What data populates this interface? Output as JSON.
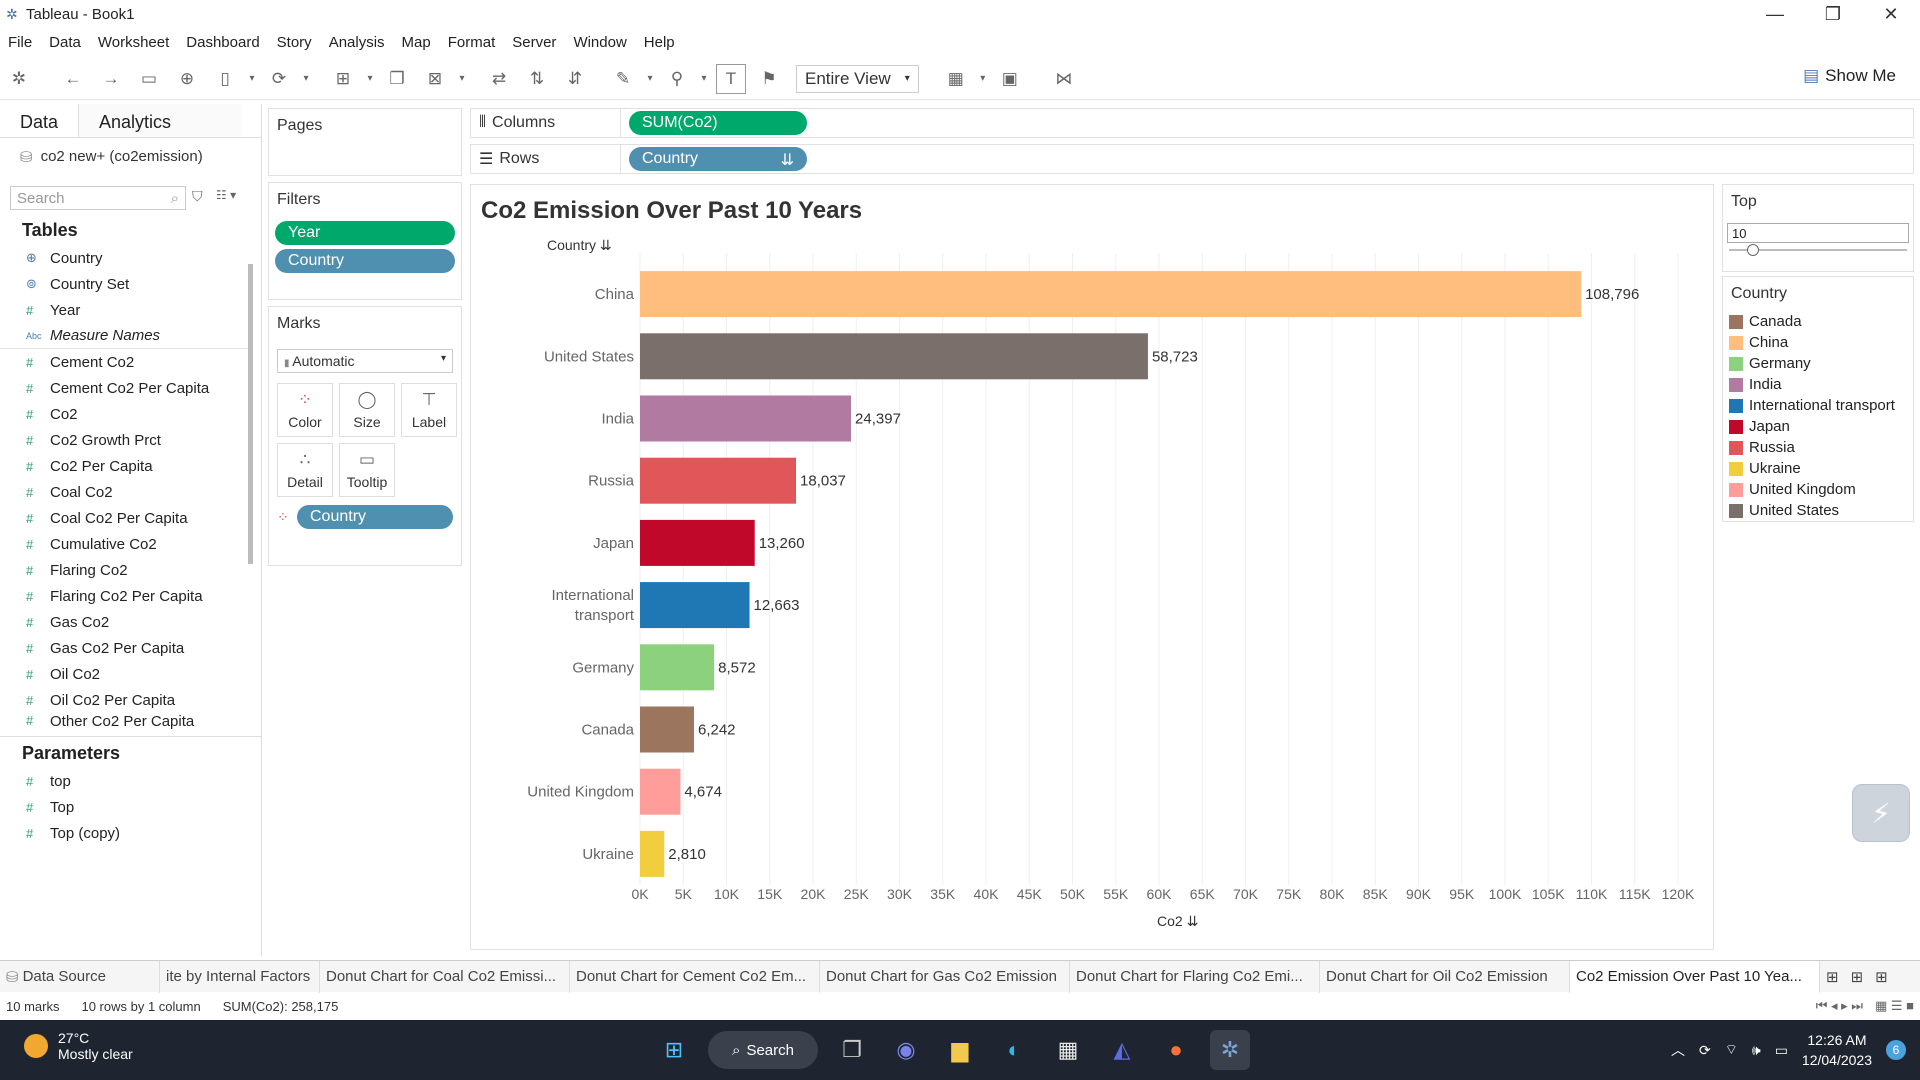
{
  "window": {
    "title": "Tableau - Book1"
  },
  "menu": [
    "File",
    "Data",
    "Worksheet",
    "Dashboard",
    "Story",
    "Analysis",
    "Map",
    "Format",
    "Server",
    "Window",
    "Help"
  ],
  "toolbar": {
    "view_fit": "Entire View",
    "show_me": "Show Me"
  },
  "data_pane": {
    "tabs": [
      "Data",
      "Analytics"
    ],
    "source": "co2 new+ (co2emission)",
    "search_placeholder": "Search",
    "tables_heading": "Tables",
    "fields": [
      {
        "name": "Country",
        "type": "geo"
      },
      {
        "name": "Country Set",
        "type": "set"
      },
      {
        "name": "Year",
        "type": "measure"
      },
      {
        "name": "Measure Names",
        "type": "abc"
      },
      {
        "name": "Cement Co2",
        "type": "measure"
      },
      {
        "name": "Cement Co2 Per Capita",
        "type": "measure"
      },
      {
        "name": "Co2",
        "type": "measure"
      },
      {
        "name": "Co2 Growth Prct",
        "type": "measure"
      },
      {
        "name": "Co2 Per Capita",
        "type": "measure"
      },
      {
        "name": "Coal Co2",
        "type": "measure"
      },
      {
        "name": "Coal Co2 Per Capita",
        "type": "measure"
      },
      {
        "name": "Cumulative Co2",
        "type": "measure"
      },
      {
        "name": "Flaring Co2",
        "type": "measure"
      },
      {
        "name": "Flaring Co2 Per Capita",
        "type": "measure"
      },
      {
        "name": "Gas Co2",
        "type": "measure"
      },
      {
        "name": "Gas Co2 Per Capita",
        "type": "measure"
      },
      {
        "name": "Oil Co2",
        "type": "measure"
      },
      {
        "name": "Oil Co2 Per Capita",
        "type": "measure"
      },
      {
        "name": "Other Co2 Per Capita",
        "type": "measure"
      }
    ],
    "parameters_heading": "Parameters",
    "parameters": [
      "top",
      "Top",
      "Top (copy)"
    ]
  },
  "pages": {
    "label": "Pages"
  },
  "filters": {
    "label": "Filters",
    "pills": [
      "Year",
      "Country"
    ]
  },
  "marks": {
    "label": "Marks",
    "type": "Automatic",
    "buttons": [
      "Color",
      "Size",
      "Label",
      "Detail",
      "Tooltip"
    ],
    "pill": "Country"
  },
  "shelves": {
    "columns_label": "Columns",
    "columns_pill": "SUM(Co2)",
    "rows_label": "Rows",
    "rows_pill": "Country"
  },
  "chart_data": {
    "type": "bar",
    "title": "Co2 Emission Over Past 10 Years",
    "row_header": "Country",
    "xlabel": "Co2",
    "categories": [
      "China",
      "United States",
      "India",
      "Russia",
      "Japan",
      "International transport",
      "Germany",
      "Canada",
      "United Kingdom",
      "Ukraine"
    ],
    "category_labels": [
      [
        "China"
      ],
      [
        "United States"
      ],
      [
        "India"
      ],
      [
        "Russia"
      ],
      [
        "Japan"
      ],
      [
        "International",
        "transport"
      ],
      [
        "Germany"
      ],
      [
        "Canada"
      ],
      [
        "United Kingdom"
      ],
      [
        "Ukraine"
      ]
    ],
    "values": [
      108796,
      58723,
      24397,
      18037,
      13260,
      12663,
      8572,
      6242,
      4674,
      2810
    ],
    "value_labels": [
      "108,796",
      "58,723",
      "24,397",
      "18,037",
      "13,260",
      "12,663",
      "8,572",
      "6,242",
      "4,674",
      "2,810"
    ],
    "colors": [
      "#FFBE7D",
      "#7B6F6C",
      "#B07AA1",
      "#E15759",
      "#C0082A",
      "#1F77B4",
      "#8CD17D",
      "#9C755F",
      "#FF9D9A",
      "#F1CE3E"
    ],
    "xlim": [
      0,
      120000
    ],
    "x_ticks": [
      0,
      5000,
      10000,
      15000,
      20000,
      25000,
      30000,
      35000,
      40000,
      45000,
      50000,
      55000,
      60000,
      65000,
      70000,
      75000,
      80000,
      85000,
      90000,
      95000,
      100000,
      105000,
      110000,
      115000,
      120000
    ],
    "x_tick_labels": [
      "0K",
      "5K",
      "10K",
      "15K",
      "20K",
      "25K",
      "30K",
      "35K",
      "40K",
      "45K",
      "50K",
      "55K",
      "60K",
      "65K",
      "70K",
      "75K",
      "80K",
      "85K",
      "90K",
      "95K",
      "100K",
      "105K",
      "110K",
      "115K",
      "120K"
    ],
    "grid": true
  },
  "top_param": {
    "label": "Top",
    "value": "10"
  },
  "legend": {
    "title": "Country",
    "items": [
      {
        "name": "Canada",
        "color": "#9C755F"
      },
      {
        "name": "China",
        "color": "#FFBE7D"
      },
      {
        "name": "Germany",
        "color": "#8CD17D"
      },
      {
        "name": "India",
        "color": "#B07AA1"
      },
      {
        "name": "International transport",
        "color": "#1F77B4"
      },
      {
        "name": "Japan",
        "color": "#C0082A"
      },
      {
        "name": "Russia",
        "color": "#E15759"
      },
      {
        "name": "Ukraine",
        "color": "#F1CE3E"
      },
      {
        "name": "United Kingdom",
        "color": "#FF9D9A"
      },
      {
        "name": "United States",
        "color": "#7B6F6C"
      }
    ]
  },
  "sheet_tabs": {
    "data_source": "Data Source",
    "tabs": [
      "ite by Internal Factors",
      "Donut Chart for Coal Co2 Emissi...",
      "Donut Chart for Cement Co2 Em...",
      "Donut Chart for Gas Co2 Emission",
      "Donut Chart for Flaring Co2 Emi...",
      "Donut Chart for Oil Co2 Emission",
      "Co2 Emission Over Past 10 Yea..."
    ]
  },
  "status": {
    "marks": "10 marks",
    "rows": "10 rows by 1 column",
    "sum": "SUM(Co2): 258,175"
  },
  "taskbar": {
    "temp": "27°C",
    "weather": "Mostly clear",
    "search": "Search",
    "time": "12:26 AM",
    "date": "12/04/2023",
    "notifications": "6"
  }
}
